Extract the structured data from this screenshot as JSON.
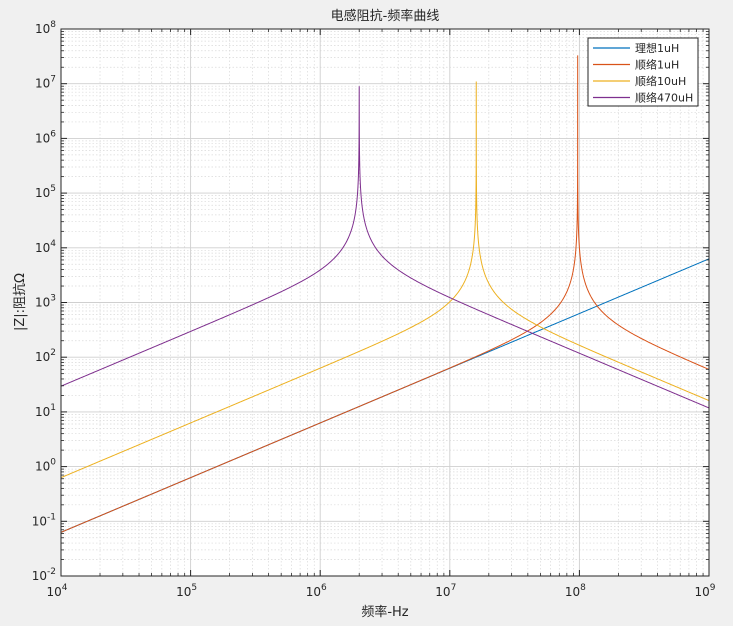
{
  "chart_data": {
    "type": "line",
    "title": "电感阻抗-频率曲线",
    "xlabel": "频率-Hz",
    "ylabel": "|Z|:阻抗Ω",
    "xscale": "log",
    "yscale": "log",
    "xlim": [
      10000,
      1000000000
    ],
    "ylim": [
      0.01,
      100000000
    ],
    "grid": true,
    "minor_grid": true,
    "legend_position": "top-right",
    "x_tick_labels": [
      {
        "base": "10",
        "exp": "4"
      },
      {
        "base": "10",
        "exp": "5"
      },
      {
        "base": "10",
        "exp": "6"
      },
      {
        "base": "10",
        "exp": "7"
      },
      {
        "base": "10",
        "exp": "8"
      },
      {
        "base": "10",
        "exp": "9"
      }
    ],
    "y_tick_labels": [
      {
        "base": "10",
        "exp": "-2"
      },
      {
        "base": "10",
        "exp": "-1"
      },
      {
        "base": "10",
        "exp": "0"
      },
      {
        "base": "10",
        "exp": "1"
      },
      {
        "base": "10",
        "exp": "2"
      },
      {
        "base": "10",
        "exp": "3"
      },
      {
        "base": "10",
        "exp": "4"
      },
      {
        "base": "10",
        "exp": "5"
      },
      {
        "base": "10",
        "exp": "6"
      },
      {
        "base": "10",
        "exp": "7"
      },
      {
        "base": "10",
        "exp": "8"
      }
    ],
    "series": [
      {
        "name": "理想1uH",
        "color": "#0072BD",
        "model": "ideal",
        "inductance_uH": 1,
        "points": [
          [
            10000,
            0.0628
          ],
          [
            100000000,
            628
          ],
          [
            1000000000,
            6280
          ]
        ]
      },
      {
        "name": "顺络1uH",
        "color": "#D95319",
        "model": "resonant",
        "inductance_uH": 1,
        "resonance_hz": 97000000,
        "peak_ohm": 33000000,
        "points": [
          [
            10000,
            0.0628
          ],
          [
            10000000,
            63
          ],
          [
            97000000,
            33000000
          ],
          [
            1000000000,
            65
          ]
        ]
      },
      {
        "name": "顺络10uH",
        "color": "#EDB120",
        "model": "resonant",
        "inductance_uH": 10,
        "resonance_hz": 16000000,
        "peak_ohm": 11000000,
        "points": [
          [
            10000,
            0.628
          ],
          [
            1000000,
            63
          ],
          [
            16000000,
            11000000
          ],
          [
            1000000000,
            16
          ]
        ]
      },
      {
        "name": "顺络470uH",
        "color": "#7E2F8E",
        "model": "resonant",
        "inductance_uH": 470,
        "resonance_hz": 2000000,
        "peak_ohm": 9000000,
        "points": [
          [
            10000,
            29.5
          ],
          [
            1000000,
            2950
          ],
          [
            2000000,
            9000000
          ],
          [
            1000000000,
            12
          ]
        ]
      }
    ]
  }
}
